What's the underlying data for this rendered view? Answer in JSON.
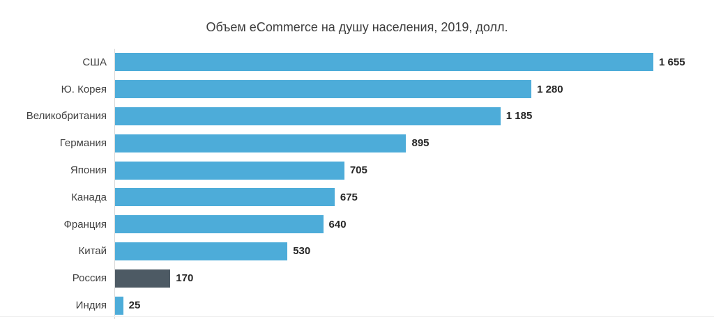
{
  "title": "Объем eCommerce на душу населения, 2019, долл.",
  "chart_data": {
    "type": "bar",
    "orientation": "horizontal",
    "title": "Объем eCommerce на душу населения, 2019, долл.",
    "categories": [
      "США",
      "Ю. Корея",
      "Великобритания",
      "Германия",
      "Япония",
      "Канада",
      "Франция",
      "Китай",
      "Россия",
      "Индия"
    ],
    "values": [
      1655,
      1280,
      1185,
      895,
      705,
      675,
      640,
      530,
      170,
      25
    ],
    "value_labels": [
      "1 655",
      "1 280",
      "1 185",
      "895",
      "705",
      "675",
      "640",
      "530",
      "170",
      "25"
    ],
    "xlim": [
      0,
      1655
    ],
    "bar_color": "#4dacd9",
    "highlight_color": "#4d5a64",
    "highlight_index": 8,
    "axis_line_color": "#d9d9d9",
    "grid": false,
    "legend": false,
    "value_labels_position": "end-of-bar"
  }
}
